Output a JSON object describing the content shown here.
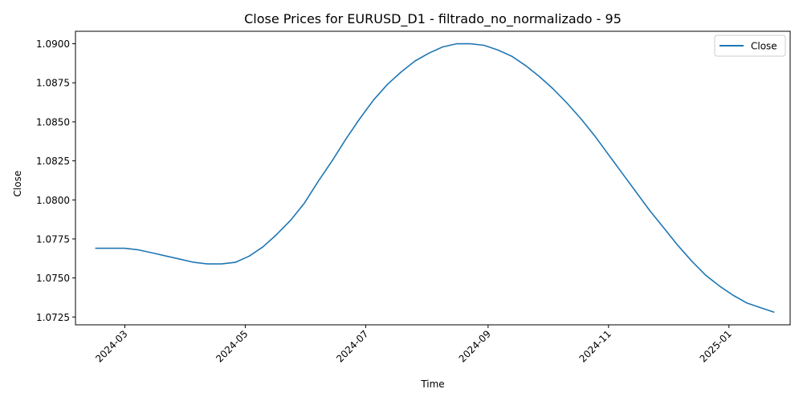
{
  "chart_data": {
    "type": "line",
    "title": "Close Prices for EURUSD_D1 - filtrado_no_normalizado - 95",
    "xlabel": "Time",
    "ylabel": "Close",
    "xlim": [
      "2024-02-05",
      "2025-02-01"
    ],
    "ylim": [
      1.072,
      1.0908
    ],
    "x_ticks": [
      "2024-03-01",
      "2024-05-01",
      "2024-07-01",
      "2024-09-01",
      "2024-11-01",
      "2025-01-01"
    ],
    "x_tick_labels": [
      "2024-03",
      "2024-05",
      "2024-07",
      "2024-09",
      "2024-11",
      "2025-01"
    ],
    "y_ticks": [
      1.0725,
      1.075,
      1.0775,
      1.08,
      1.0825,
      1.085,
      1.0875,
      1.09
    ],
    "y_tick_labels": [
      "1.0725",
      "1.0750",
      "1.0775",
      "1.0800",
      "1.0825",
      "1.0850",
      "1.0875",
      "1.0900"
    ],
    "legend_position": "top-right",
    "grid": false,
    "series": [
      {
        "name": "Close",
        "color": "#1f77b4",
        "x": [
          "2024-02-15",
          "2024-02-22",
          "2024-03-01",
          "2024-03-08",
          "2024-03-15",
          "2024-03-22",
          "2024-03-29",
          "2024-04-05",
          "2024-04-12",
          "2024-04-19",
          "2024-04-26",
          "2024-05-03",
          "2024-05-10",
          "2024-05-17",
          "2024-05-24",
          "2024-05-31",
          "2024-06-07",
          "2024-06-14",
          "2024-06-21",
          "2024-06-28",
          "2024-07-05",
          "2024-07-12",
          "2024-07-19",
          "2024-07-26",
          "2024-08-02",
          "2024-08-09",
          "2024-08-16",
          "2024-08-23",
          "2024-08-30",
          "2024-09-06",
          "2024-09-13",
          "2024-09-20",
          "2024-09-27",
          "2024-10-04",
          "2024-10-11",
          "2024-10-18",
          "2024-10-25",
          "2024-11-01",
          "2024-11-08",
          "2024-11-15",
          "2024-11-22",
          "2024-11-29",
          "2024-12-06",
          "2024-12-13",
          "2024-12-20",
          "2024-12-27",
          "2025-01-03",
          "2025-01-10",
          "2025-01-17",
          "2025-01-24"
        ],
        "values": [
          1.0769,
          1.0769,
          1.0769,
          1.0768,
          1.0766,
          1.0764,
          1.0762,
          1.076,
          1.0759,
          1.0759,
          1.076,
          1.0764,
          1.077,
          1.0778,
          1.0787,
          1.0798,
          1.0812,
          1.0825,
          1.0839,
          1.0852,
          1.0864,
          1.0874,
          1.0882,
          1.0889,
          1.0894,
          1.0898,
          1.09,
          1.09,
          1.0899,
          1.0896,
          1.0892,
          1.0886,
          1.0879,
          1.0871,
          1.0862,
          1.0852,
          1.0841,
          1.0829,
          1.0817,
          1.0805,
          1.0793,
          1.0782,
          1.0771,
          1.0761,
          1.0752,
          1.0745,
          1.0739,
          1.0734,
          1.0731,
          1.0728
        ]
      }
    ]
  }
}
